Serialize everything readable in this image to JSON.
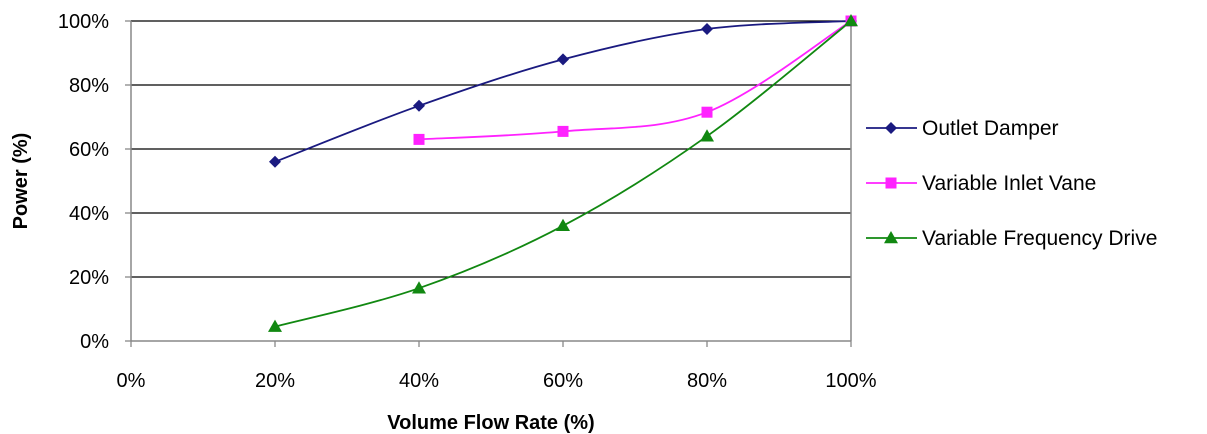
{
  "chart_data": {
    "type": "line",
    "xlabel": "Volume Flow Rate (%)",
    "ylabel": "Power (%)",
    "xlim": [
      0,
      100
    ],
    "ylim": [
      0,
      100
    ],
    "x_ticks": [
      "0%",
      "20%",
      "40%",
      "60%",
      "80%",
      "100%"
    ],
    "y_ticks": [
      "0%",
      "20%",
      "40%",
      "60%",
      "80%",
      "100%"
    ],
    "grid": "horizontal",
    "legend_position": "right",
    "series": [
      {
        "name": "Outlet Damper",
        "color": "#1a1a80",
        "marker": "diamond",
        "x": [
          20,
          40,
          60,
          80,
          100
        ],
        "y": [
          56,
          73.5,
          88,
          97.5,
          100
        ]
      },
      {
        "name": "Variable Inlet Vane",
        "color": "#ff22ff",
        "marker": "square",
        "x": [
          40,
          60,
          80,
          100
        ],
        "y": [
          63,
          65.5,
          71.5,
          100
        ]
      },
      {
        "name": "Variable Frequency Drive",
        "color": "#118811",
        "marker": "triangle",
        "x": [
          20,
          40,
          60,
          80,
          100
        ],
        "y": [
          4.5,
          16.5,
          36,
          64,
          100
        ]
      }
    ]
  }
}
